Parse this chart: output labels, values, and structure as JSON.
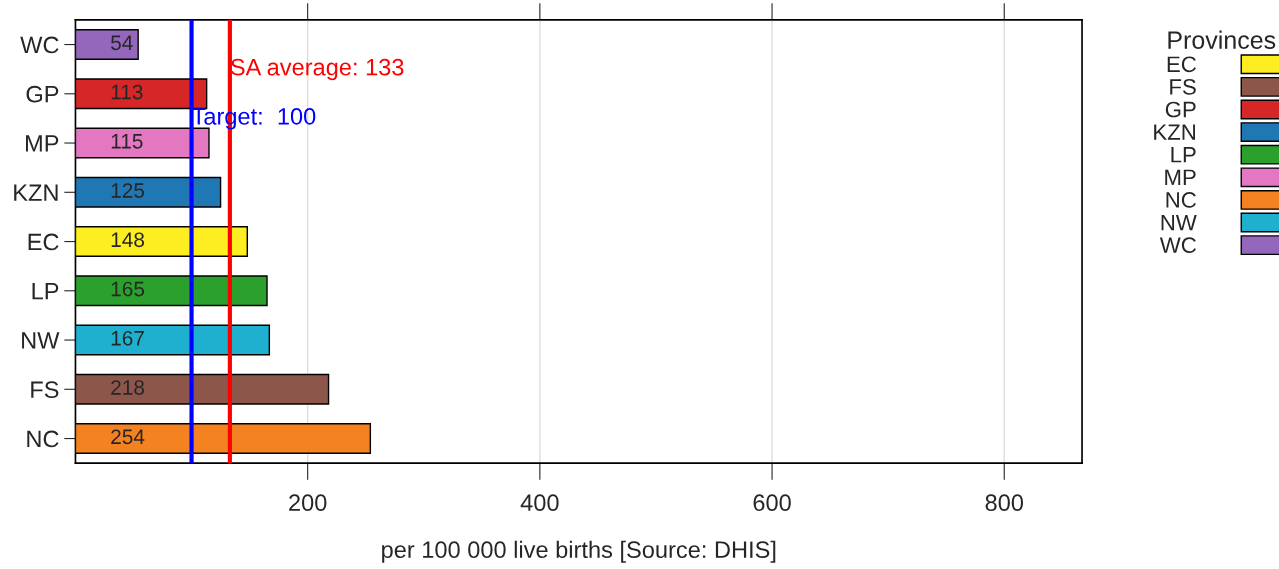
{
  "chart_data": {
    "type": "bar",
    "orientation": "horizontal",
    "xlabel": "per 100 000 live births [Source: DHIS]",
    "legend_title": "Provinces",
    "legend": "right",
    "categories": [
      "WC",
      "GP",
      "MP",
      "KZN",
      "EC",
      "LP",
      "NW",
      "FS",
      "NC"
    ],
    "series": [
      {
        "name": "EC",
        "color": "#fcee21",
        "values": [
          null,
          null,
          null,
          null,
          148,
          null,
          null,
          null,
          null
        ]
      },
      {
        "name": "FS",
        "color": "#8c564b",
        "values": [
          null,
          null,
          null,
          null,
          null,
          null,
          null,
          218,
          null
        ]
      },
      {
        "name": "GP",
        "color": "#d62728",
        "values": [
          null,
          113,
          null,
          null,
          null,
          null,
          null,
          null,
          null
        ]
      },
      {
        "name": "KZN",
        "color": "#1f77b4",
        "values": [
          null,
          null,
          null,
          125,
          null,
          null,
          null,
          null,
          null
        ]
      },
      {
        "name": "LP",
        "color": "#2ca02c",
        "values": [
          null,
          null,
          null,
          null,
          null,
          165,
          null,
          null,
          null
        ]
      },
      {
        "name": "MP",
        "color": "#e377c2",
        "values": [
          null,
          null,
          115,
          null,
          null,
          null,
          null,
          null,
          null
        ]
      },
      {
        "name": "NC",
        "color": "#f58220",
        "values": [
          null,
          null,
          null,
          null,
          null,
          null,
          null,
          null,
          254
        ]
      },
      {
        "name": "NW",
        "color": "#1fb0d0",
        "values": [
          null,
          null,
          null,
          null,
          null,
          null,
          167,
          null,
          null
        ]
      },
      {
        "name": "WC",
        "color": "#9467bd",
        "values": [
          54,
          null,
          null,
          null,
          null,
          null,
          null,
          null,
          null
        ]
      }
    ],
    "data_labels": true,
    "xlim": [
      0,
      867
    ],
    "xticks": [
      200,
      400,
      600,
      800
    ],
    "grid": "x",
    "ref_lines": [
      {
        "axis": "x",
        "value": 100,
        "label": "Target:  100",
        "color": "#0000ff"
      },
      {
        "axis": "x",
        "value": 133,
        "label": "SA average: 133",
        "color": "#ff0000"
      }
    ]
  }
}
